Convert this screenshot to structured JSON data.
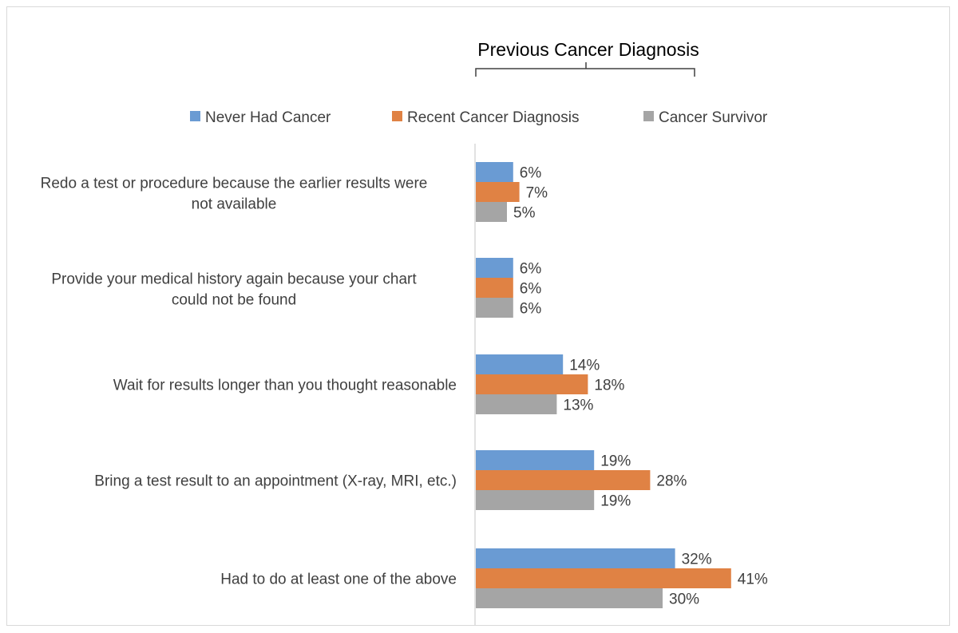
{
  "chart_data": {
    "type": "bar",
    "orientation": "horizontal",
    "title": "",
    "legend_title": "Previous Cancer Diagnosis",
    "legend_placement": "top",
    "categories": [
      "Redo a test or procedure because the earlier results were not available",
      "Provide your medical history again because your chart could not be found",
      "Wait for results longer than you thought reasonable",
      "Bring a test result to an appointment (X-ray, MRI, etc.)",
      "Had to do at least one of the above"
    ],
    "series": [
      {
        "name": "Never Had Cancer",
        "color": "#6A9BD3",
        "values": [
          6,
          6,
          14,
          19,
          32
        ]
      },
      {
        "name": "Recent Cancer Diagnosis",
        "color": "#E08244",
        "values": [
          7,
          6,
          18,
          28,
          41
        ]
      },
      {
        "name": "Cancer Survivor",
        "color": "#A5A5A5",
        "values": [
          5,
          6,
          13,
          19,
          30
        ]
      }
    ],
    "value_suffix": "%",
    "xlim": [
      0,
      50
    ],
    "grid": false,
    "data_labels": true
  }
}
